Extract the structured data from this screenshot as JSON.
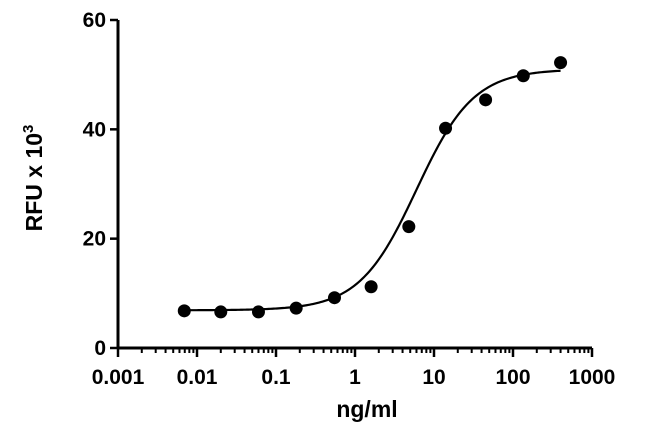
{
  "chart_data": {
    "type": "scatter",
    "title": "",
    "xlabel": "ng/ml",
    "ylabel": "RFU x 10",
    "ylabel_superscript": "3",
    "xscale": "log",
    "xlim": [
      0.001,
      1000
    ],
    "ylim": [
      0,
      60
    ],
    "xticks": [
      0.001,
      0.01,
      0.1,
      1,
      10,
      100,
      1000
    ],
    "xtick_labels": [
      "0.001",
      "0.01",
      "0.1",
      "1",
      "10",
      "100",
      "1000"
    ],
    "yticks": [
      0,
      20,
      40,
      60
    ],
    "ytick_labels": [
      "0",
      "20",
      "40",
      "60"
    ],
    "grid": false,
    "series": [
      {
        "points": [
          {
            "x": 0.0069,
            "y": 6.8
          },
          {
            "x": 0.02,
            "y": 6.6
          },
          {
            "x": 0.06,
            "y": 6.6
          },
          {
            "x": 0.18,
            "y": 7.3
          },
          {
            "x": 0.55,
            "y": 9.2
          },
          {
            "x": 1.6,
            "y": 11.2
          },
          {
            "x": 4.8,
            "y": 22.2
          },
          {
            "x": 14,
            "y": 40.2
          },
          {
            "x": 45,
            "y": 45.4
          },
          {
            "x": 135,
            "y": 49.8
          },
          {
            "x": 400,
            "y": 52.2
          }
        ]
      }
    ],
    "fit": {
      "model": "4PL",
      "bottom": 6.9,
      "top": 51.0,
      "ec50": 6.0,
      "hill": 1.2
    }
  }
}
